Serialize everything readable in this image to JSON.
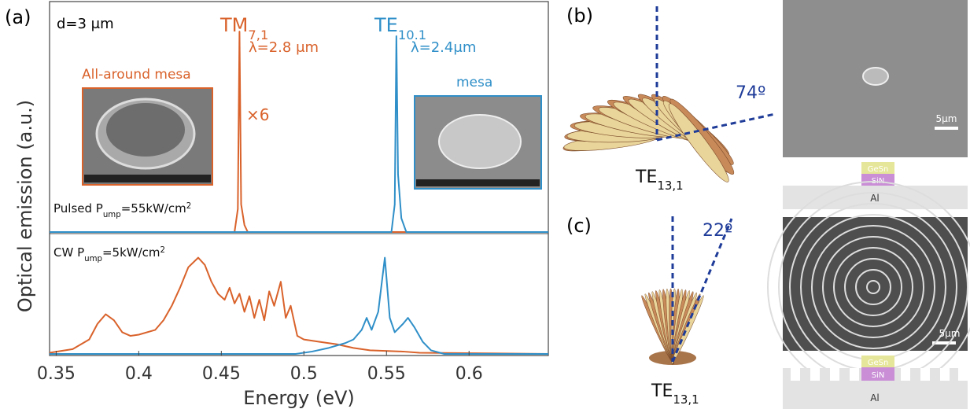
{
  "chart_data": [
    {
      "type": "line",
      "panel_label": "(a)",
      "xlim": [
        0.346,
        0.648
      ],
      "ylim": [
        0,
        1
      ],
      "annotations": {
        "thickness": "d=3 μm",
        "tm_mode": {
          "text": "TM",
          "sub": "7,1"
        },
        "tm_wavelength": "λ=2.8 μm",
        "te_mode": {
          "text": "TE",
          "sub": "10.1"
        },
        "te_wavelength": "λ=2.4μm",
        "inset_left": "All-around mesa",
        "inset_right": "mesa",
        "scale_factor": "×6",
        "pump": {
          "text": "Pulsed P",
          "sub": "ump",
          "mid": "=55kW/cm",
          "sup": "2"
        }
      },
      "series": [
        {
          "color": "#d9622b",
          "x": [
            0.346,
            0.458,
            0.46,
            0.461,
            0.462,
            0.464,
            0.466,
            0.648
          ],
          "values": [
            0,
            0,
            0.1,
            0.87,
            0.12,
            0.03,
            0,
            0
          ]
        },
        {
          "color": "#2f8fc8",
          "x": [
            0.346,
            0.553,
            0.555,
            0.556,
            0.557,
            0.559,
            0.562,
            0.648
          ],
          "values": [
            0,
            0,
            0.12,
            0.85,
            0.25,
            0.06,
            0,
            0
          ]
        }
      ]
    },
    {
      "type": "line",
      "xlim": [
        0.346,
        0.648
      ],
      "ylim": [
        0,
        1
      ],
      "xticks": [
        0.35,
        0.4,
        0.45,
        0.5,
        0.55,
        0.6
      ],
      "x_label": "Energy (eV)",
      "y_label": "Optical emission (a.u.)",
      "annotations": {
        "pump": {
          "text": "CW P",
          "sub": "ump",
          "mid": "=5kW/cm",
          "sup": "2"
        }
      },
      "series": [
        {
          "color": "#d9622b",
          "x": [
            0.346,
            0.36,
            0.37,
            0.375,
            0.38,
            0.385,
            0.39,
            0.395,
            0.4,
            0.41,
            0.415,
            0.42,
            0.425,
            0.43,
            0.436,
            0.44,
            0.444,
            0.448,
            0.452,
            0.455,
            0.458,
            0.461,
            0.464,
            0.467,
            0.47,
            0.473,
            0.476,
            0.479,
            0.482,
            0.486,
            0.489,
            0.492,
            0.496,
            0.5,
            0.51,
            0.52,
            0.53,
            0.54,
            0.56,
            0.57,
            0.648
          ],
          "values": [
            0.01,
            0.04,
            0.12,
            0.25,
            0.33,
            0.28,
            0.18,
            0.15,
            0.16,
            0.2,
            0.28,
            0.4,
            0.55,
            0.72,
            0.8,
            0.74,
            0.6,
            0.5,
            0.45,
            0.55,
            0.42,
            0.5,
            0.35,
            0.48,
            0.3,
            0.45,
            0.28,
            0.52,
            0.4,
            0.6,
            0.3,
            0.4,
            0.15,
            0.12,
            0.1,
            0.08,
            0.05,
            0.03,
            0.02,
            0.01,
            0
          ]
        },
        {
          "color": "#2f8fc8",
          "x": [
            0.346,
            0.495,
            0.505,
            0.515,
            0.525,
            0.53,
            0.535,
            0.538,
            0.541,
            0.545,
            0.549,
            0.552,
            0.555,
            0.56,
            0.563,
            0.567,
            0.572,
            0.577,
            0.585,
            0.648
          ],
          "values": [
            0,
            0,
            0.02,
            0.05,
            0.09,
            0.12,
            0.2,
            0.3,
            0.2,
            0.35,
            0.8,
            0.3,
            0.18,
            0.25,
            0.3,
            0.22,
            0.1,
            0.03,
            0,
            0
          ]
        }
      ]
    }
  ],
  "panel_b": {
    "label": "(b)",
    "angle": "74º",
    "mode": {
      "text": "TE",
      "sub": "13,1"
    },
    "scale_bar": "5μm",
    "layers": [
      "GeSn",
      "SiN",
      "Al"
    ]
  },
  "panel_c": {
    "label": "(c)",
    "angle": "22º",
    "mode": {
      "text": "TE",
      "sub": "13,1"
    },
    "scale_bar": "5μm",
    "layers": [
      "GeSn",
      "SiN",
      "Al"
    ]
  }
}
